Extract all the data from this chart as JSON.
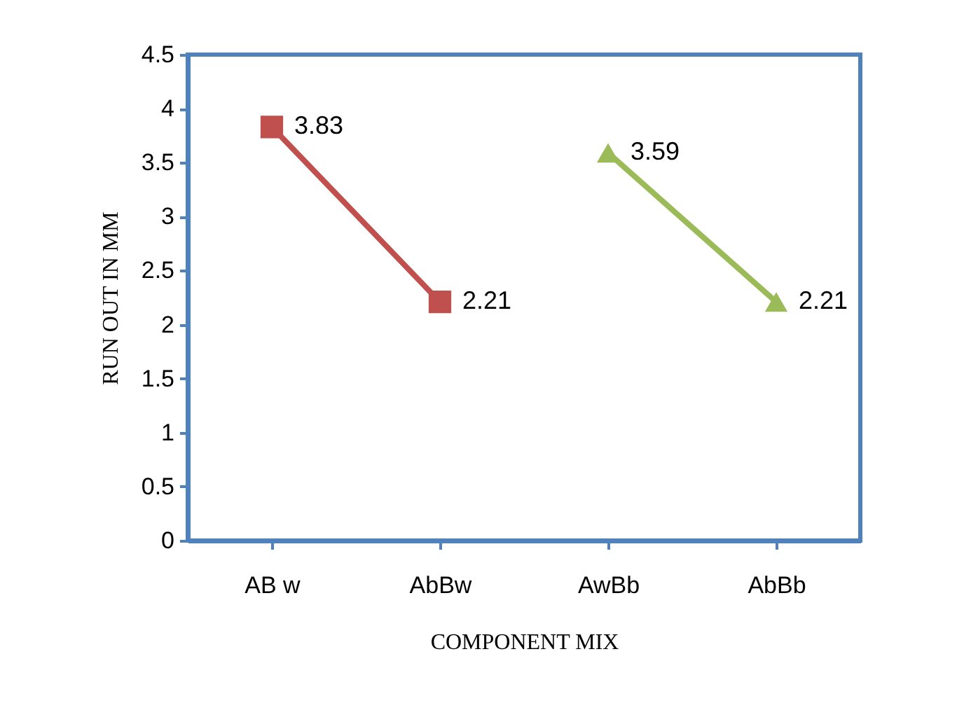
{
  "chart_data": {
    "type": "line",
    "xlabel": "COMPONENT MIX",
    "ylabel": "RUN OUT  IN MM",
    "categories": [
      "AB w",
      "AbBw",
      "AwBb",
      "AbBb"
    ],
    "series": [
      {
        "color": "#c0504d",
        "marker": "square",
        "values": [
          3.83,
          2.21,
          null,
          null
        ]
      },
      {
        "color": "#9bbb59",
        "marker": "triangle",
        "values": [
          null,
          null,
          3.59,
          2.21
        ]
      }
    ],
    "ylim": [
      0,
      4.5
    ],
    "yticks": [
      0,
      0.5,
      1,
      1.5,
      2,
      2.5,
      3,
      3.5,
      4,
      4.5
    ],
    "grid": false,
    "data_labels": true
  }
}
